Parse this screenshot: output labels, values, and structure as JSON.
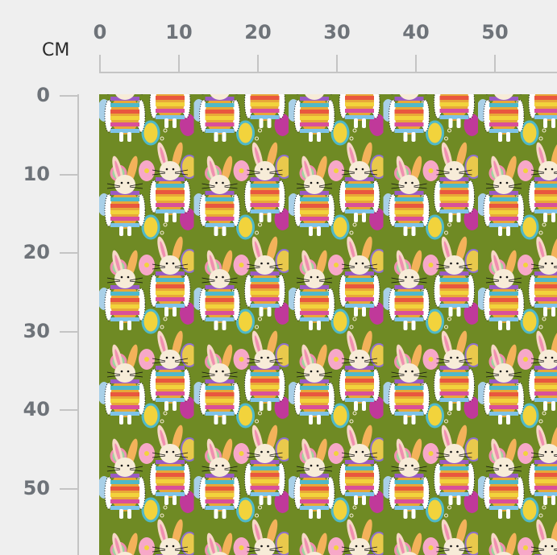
{
  "ruler": {
    "unit": "CM",
    "top_labels": [
      "0",
      "10",
      "20",
      "30",
      "40",
      "50"
    ],
    "left_labels": [
      "0",
      "10",
      "20",
      "30",
      "40",
      "50"
    ]
  },
  "fabric": {
    "description_icon": "easter-bunny-egg-pattern",
    "background_color": "#6f8a24"
  }
}
